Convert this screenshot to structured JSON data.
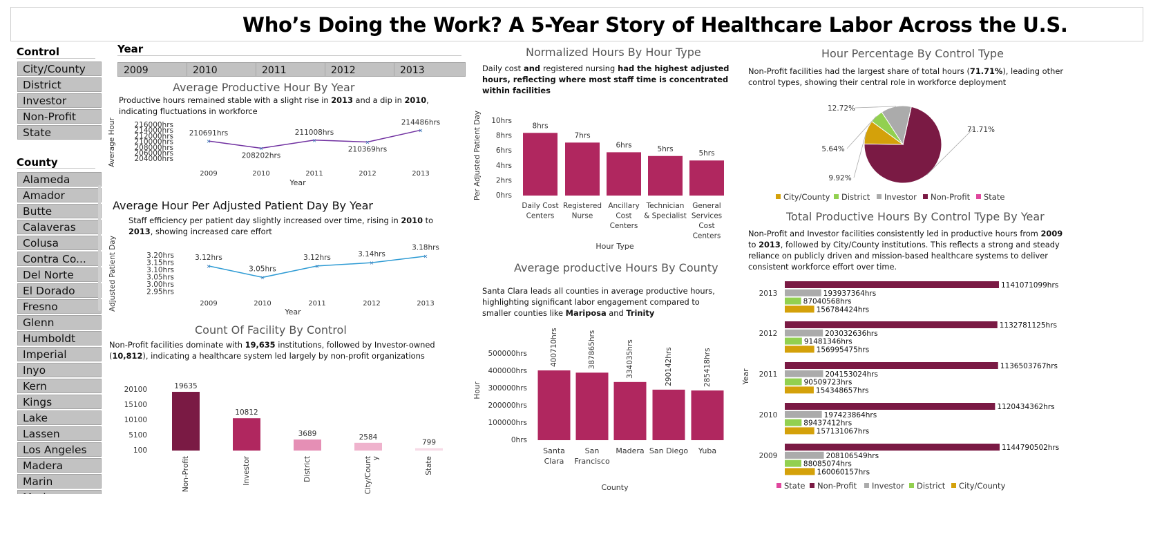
{
  "title": "Who’s Doing the Work? A 5-Year Story of Healthcare Labor Across the U.S.",
  "colors": {
    "nonprofit": "#7a1a44",
    "investor": "#ababab",
    "district": "#92d050",
    "citycounty": "#d4a10a",
    "state": "#e0479e",
    "bar_magenta": "#b0275f",
    "line_purple": "#7030a0",
    "line_blue": "#2e9bd4"
  },
  "control_slicer": {
    "header": "Control",
    "items": [
      "City/County",
      "District",
      "Investor",
      "Non-Profit",
      "State"
    ]
  },
  "county_slicer": {
    "header": "County",
    "items": [
      "Alameda",
      "Amador",
      "Butte",
      "Calaveras",
      "Colusa",
      "Contra Co...",
      "Del Norte",
      "El Dorado",
      "Fresno",
      "Glenn",
      "Humboldt",
      "Imperial",
      "Inyo",
      "Kern",
      "Kings",
      "Lake",
      "Lassen",
      "Los Angeles",
      "Madera",
      "Marin",
      "Mariposa"
    ]
  },
  "year_slicer": {
    "header": "Year",
    "items": [
      "2009",
      "2010",
      "2011",
      "2012",
      "2013"
    ]
  },
  "avg_productive": {
    "title": "Average Productive Hour By Year",
    "desc": [
      "Productive hours remained stable with a slight rise in ",
      "2013",
      " and a dip in ",
      "2010",
      ", indicating fluctuations in workforce"
    ],
    "ylabel": "Average Hour",
    "xlabel": "Year",
    "yticks": [
      "216000hrs",
      "214000hrs",
      "212000hrs",
      "210000hrs",
      "208000hrs",
      "206000hrs",
      "204000hrs"
    ]
  },
  "avg_adjusted": {
    "title": "Average Hour Per Adjusted Patient Day By Year",
    "desc": [
      "Staff efficiency per patient day slightly increased over time, rising in ",
      "2010",
      " to ",
      "2013",
      ", showing increased care effort"
    ],
    "ylabel": "Adjusted Patient Day",
    "xlabel": "Year",
    "yticks": [
      "3.20hrs",
      "3.15hrs",
      "3.10hrs",
      "3.05hrs",
      "3.00hrs",
      "2.95hrs"
    ]
  },
  "facility_count": {
    "title": "Count Of Facility By Control",
    "desc": [
      "Non-Profit facilities dominate with ",
      "19,635",
      " institutions, followed by Investor-owned (",
      "10,812",
      "), indicating a healthcare system led largely by non-profit organizations"
    ],
    "yticks": [
      "20100",
      "15100",
      "10100",
      "5100",
      "100"
    ]
  },
  "normalized": {
    "title": "Normalized Hours By Hour Type",
    "desc": [
      "Daily cost",
      " and ",
      "registered nursing",
      " had the highest adjusted hours, reflecting where most staff time is concentrated within facilities"
    ],
    "ylabel": "Per Adjusted Patient Day",
    "xlabel": "Hour Type",
    "yticks": [
      "10hrs",
      "8hrs",
      "6hrs",
      "4hrs",
      "2hrs",
      "0hrs"
    ]
  },
  "county_hours": {
    "title": "Average productive Hours By County",
    "desc": [
      "Santa Clara leads all counties in average productive hours, highlighting significant labor engagement compared to smaller counties like ",
      "Mariposa",
      " and ",
      "Trinity"
    ],
    "ylabel": "Hour",
    "xlabel": "County",
    "yticks": [
      "500000hrs",
      "400000hrs",
      "300000hrs",
      "200000hrs",
      "100000hrs",
      "0hrs"
    ]
  },
  "pie": {
    "title": "Hour Percentage By Control Type",
    "desc": [
      "Non-Profit facilities had the largest share of total hours (",
      "71.71%",
      "),  leading other control types, showing their central role in workforce deployment"
    ],
    "legend": [
      "City/County",
      "District",
      "Investor",
      "Non-Profit",
      "State"
    ]
  },
  "total_hours": {
    "title": "Total Productive Hours By Control Type By Year",
    "desc": [
      "Non-Profit and Investor facilities consistently led in productive hours from ",
      "2009",
      " to ",
      "2013",
      ", followed by City/County institutions. This reflects a strong and steady reliance on publicly driven and mission-based healthcare systems to deliver consistent workforce effort over time."
    ],
    "ylabel": "Year",
    "legend": [
      "State",
      "Non-Profit",
      "Investor",
      "District",
      "City/County"
    ]
  },
  "chart_data": [
    {
      "type": "line",
      "title": "Average Productive Hour By Year",
      "x": [
        "2009",
        "2010",
        "2011",
        "2012",
        "2013"
      ],
      "values": [
        210691,
        208202,
        211008,
        210369,
        214486
      ],
      "labels": [
        "210691hrs",
        "208202hrs",
        "211008hrs",
        "210369hrs",
        "214486hrs"
      ],
      "ylim": [
        204000,
        216000
      ]
    },
    {
      "type": "line",
      "title": "Average Hour Per Adjusted Patient Day By Year",
      "x": [
        "2009",
        "2010",
        "2011",
        "2012",
        "2013"
      ],
      "values": [
        3.12,
        3.05,
        3.12,
        3.14,
        3.18
      ],
      "labels": [
        "3.12hrs",
        "3.05hrs",
        "3.12hrs",
        "3.14hrs",
        "3.18hrs"
      ],
      "ylim": [
        2.95,
        3.2
      ]
    },
    {
      "type": "bar",
      "title": "Count Of Facility By Control",
      "categories": [
        "Non-Profit",
        "Investor",
        "District",
        "City/County",
        "State"
      ],
      "values": [
        19635,
        10812,
        3689,
        2584,
        799
      ],
      "colors": [
        "#7a1a44",
        "#b0275f",
        "#e58fb5",
        "#efb3cd",
        "#f7dbe7"
      ],
      "ylim": [
        100,
        20100
      ]
    },
    {
      "type": "bar",
      "title": "Normalized Hours By Hour Type",
      "categories": [
        "Daily Cost Centers",
        "Registered Nurse",
        "Ancillary Cost Centers",
        "Technician & Specialist",
        "General Services Cost Centers"
      ],
      "values": [
        8.4,
        7.1,
        5.8,
        5.3,
        4.7
      ],
      "labels": [
        "8hrs",
        "7hrs",
        "6hrs",
        "5hrs",
        "5hrs"
      ],
      "ylim": [
        0,
        10
      ]
    },
    {
      "type": "bar",
      "title": "Average productive Hours By County",
      "categories": [
        "Santa Clara",
        "San Francisco",
        "Madera",
        "San Diego",
        "Yuba"
      ],
      "values": [
        400710,
        387865,
        334035,
        290142,
        285418
      ],
      "labels": [
        "400710hrs",
        "387865hrs",
        "334035hrs",
        "290142hrs",
        "285418hrs"
      ],
      "ylim": [
        0,
        500000
      ]
    },
    {
      "type": "pie",
      "title": "Hour Percentage By Control Type",
      "categories": [
        "Non-Profit",
        "City/County",
        "District",
        "Investor",
        "State"
      ],
      "values": [
        71.71,
        9.92,
        5.64,
        12.72,
        0.01
      ],
      "labels": [
        "71.71%",
        "9.92%",
        "5.64%",
        "12.72%",
        ""
      ]
    },
    {
      "type": "bar",
      "title": "Total Productive Hours By Control Type By Year",
      "categories": [
        "2013",
        "2012",
        "2011",
        "2010",
        "2009"
      ],
      "series": [
        {
          "name": "Non-Profit",
          "values": [
            1141071099,
            1132781125,
            1136503767,
            1120434362,
            1144790502
          ],
          "labels": [
            "1141071099hrs",
            "1132781125hrs",
            "1136503767hrs",
            "1120434362hrs",
            "1144790502hrs"
          ]
        },
        {
          "name": "Investor",
          "values": [
            193937364,
            203032636,
            204153024,
            197423864,
            208106549
          ],
          "labels": [
            "193937364hrs",
            "203032636hrs",
            "204153024hrs",
            "197423864hrs",
            "208106549hrs"
          ]
        },
        {
          "name": "District",
          "values": [
            87040568,
            91481346,
            90509723,
            89437412,
            88085074
          ],
          "labels": [
            "87040568hrs",
            "91481346hrs",
            "90509723hrs",
            "89437412hrs",
            "88085074hrs"
          ]
        },
        {
          "name": "City/County",
          "values": [
            156784424,
            156995475,
            154348657,
            157131067,
            160060157
          ],
          "labels": [
            "156784424hrs",
            "156995475hrs",
            "154348657hrs",
            "157131067hrs",
            "160060157hrs"
          ]
        }
      ]
    }
  ]
}
